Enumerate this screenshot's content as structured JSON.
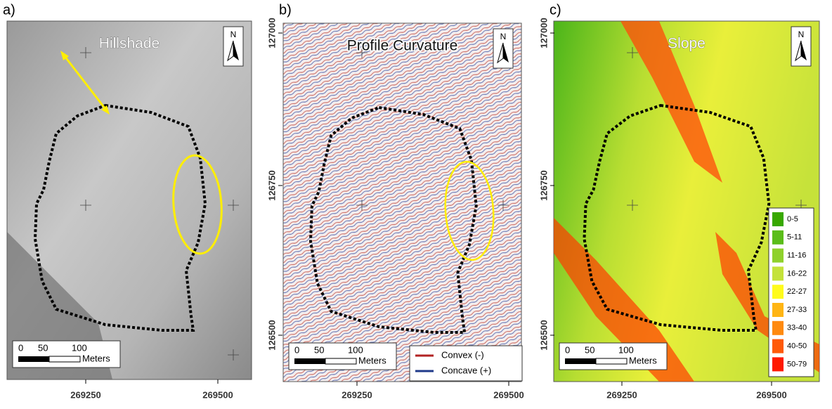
{
  "panels": [
    {
      "label": "a)",
      "title": "Hillshade",
      "north": "N",
      "scale_ticks": [
        "0",
        "50",
        "100"
      ],
      "scale_unit": "Meters",
      "x_ticks": [
        "269250",
        "269500"
      ]
    },
    {
      "label": "b)",
      "title": "Profile Curvature",
      "north": "N",
      "scale_ticks": [
        "0",
        "50",
        "100"
      ],
      "scale_unit": "Meters",
      "x_ticks": [
        "269250",
        "269500"
      ]
    },
    {
      "label": "c)",
      "title": "Slope",
      "north": "N",
      "scale_ticks": [
        "0",
        "50",
        "100"
      ],
      "scale_unit": "Meters",
      "x_ticks": [
        "269250",
        "269500"
      ]
    }
  ],
  "y_axes": [
    {
      "ticks": [
        "127000",
        "126750",
        "126500"
      ]
    },
    {
      "ticks": [
        "127000",
        "126750",
        "126500"
      ]
    }
  ],
  "curvature_legend": [
    {
      "label": "Convex (-)",
      "color": "#b22222"
    },
    {
      "label": "Concave (+)",
      "color": "#1f3a8a"
    }
  ],
  "slope_legend": [
    {
      "label": "0-5",
      "color": "#38a800"
    },
    {
      "label": "5-11",
      "color": "#5bbd1a"
    },
    {
      "label": "11-16",
      "color": "#8fd12c"
    },
    {
      "label": "16-22",
      "color": "#c4e23a"
    },
    {
      "label": "22-27",
      "color": "#fffb1c"
    },
    {
      "label": "27-33",
      "color": "#ffb514"
    },
    {
      "label": "33-40",
      "color": "#ff8a0f"
    },
    {
      "label": "40-50",
      "color": "#ff5a0a"
    },
    {
      "label": "50-79",
      "color": "#ff1a00"
    }
  ]
}
